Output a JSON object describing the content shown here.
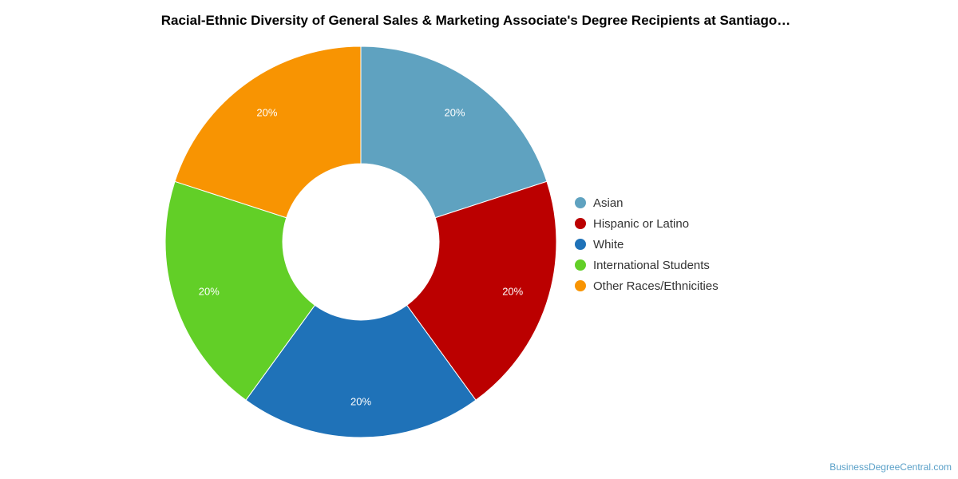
{
  "chart_data": {
    "type": "pie",
    "title": "Racial-Ethnic Diversity of General Sales & Marketing Associate's Degree Recipients at Santiago…",
    "categories": [
      "Asian",
      "Hispanic or Latino",
      "White",
      "International Students",
      "Other Races/Ethnicities"
    ],
    "values": [
      20,
      20,
      20,
      20,
      20
    ],
    "labels": [
      "20%",
      "20%",
      "20%",
      "20%",
      "20%"
    ],
    "colors": [
      "#5fa2c0",
      "#bb0000",
      "#1f72b8",
      "#62cf27",
      "#f89402"
    ],
    "donut": true,
    "legend_position": "right"
  },
  "credit": "BusinessDegreeCentral.com"
}
